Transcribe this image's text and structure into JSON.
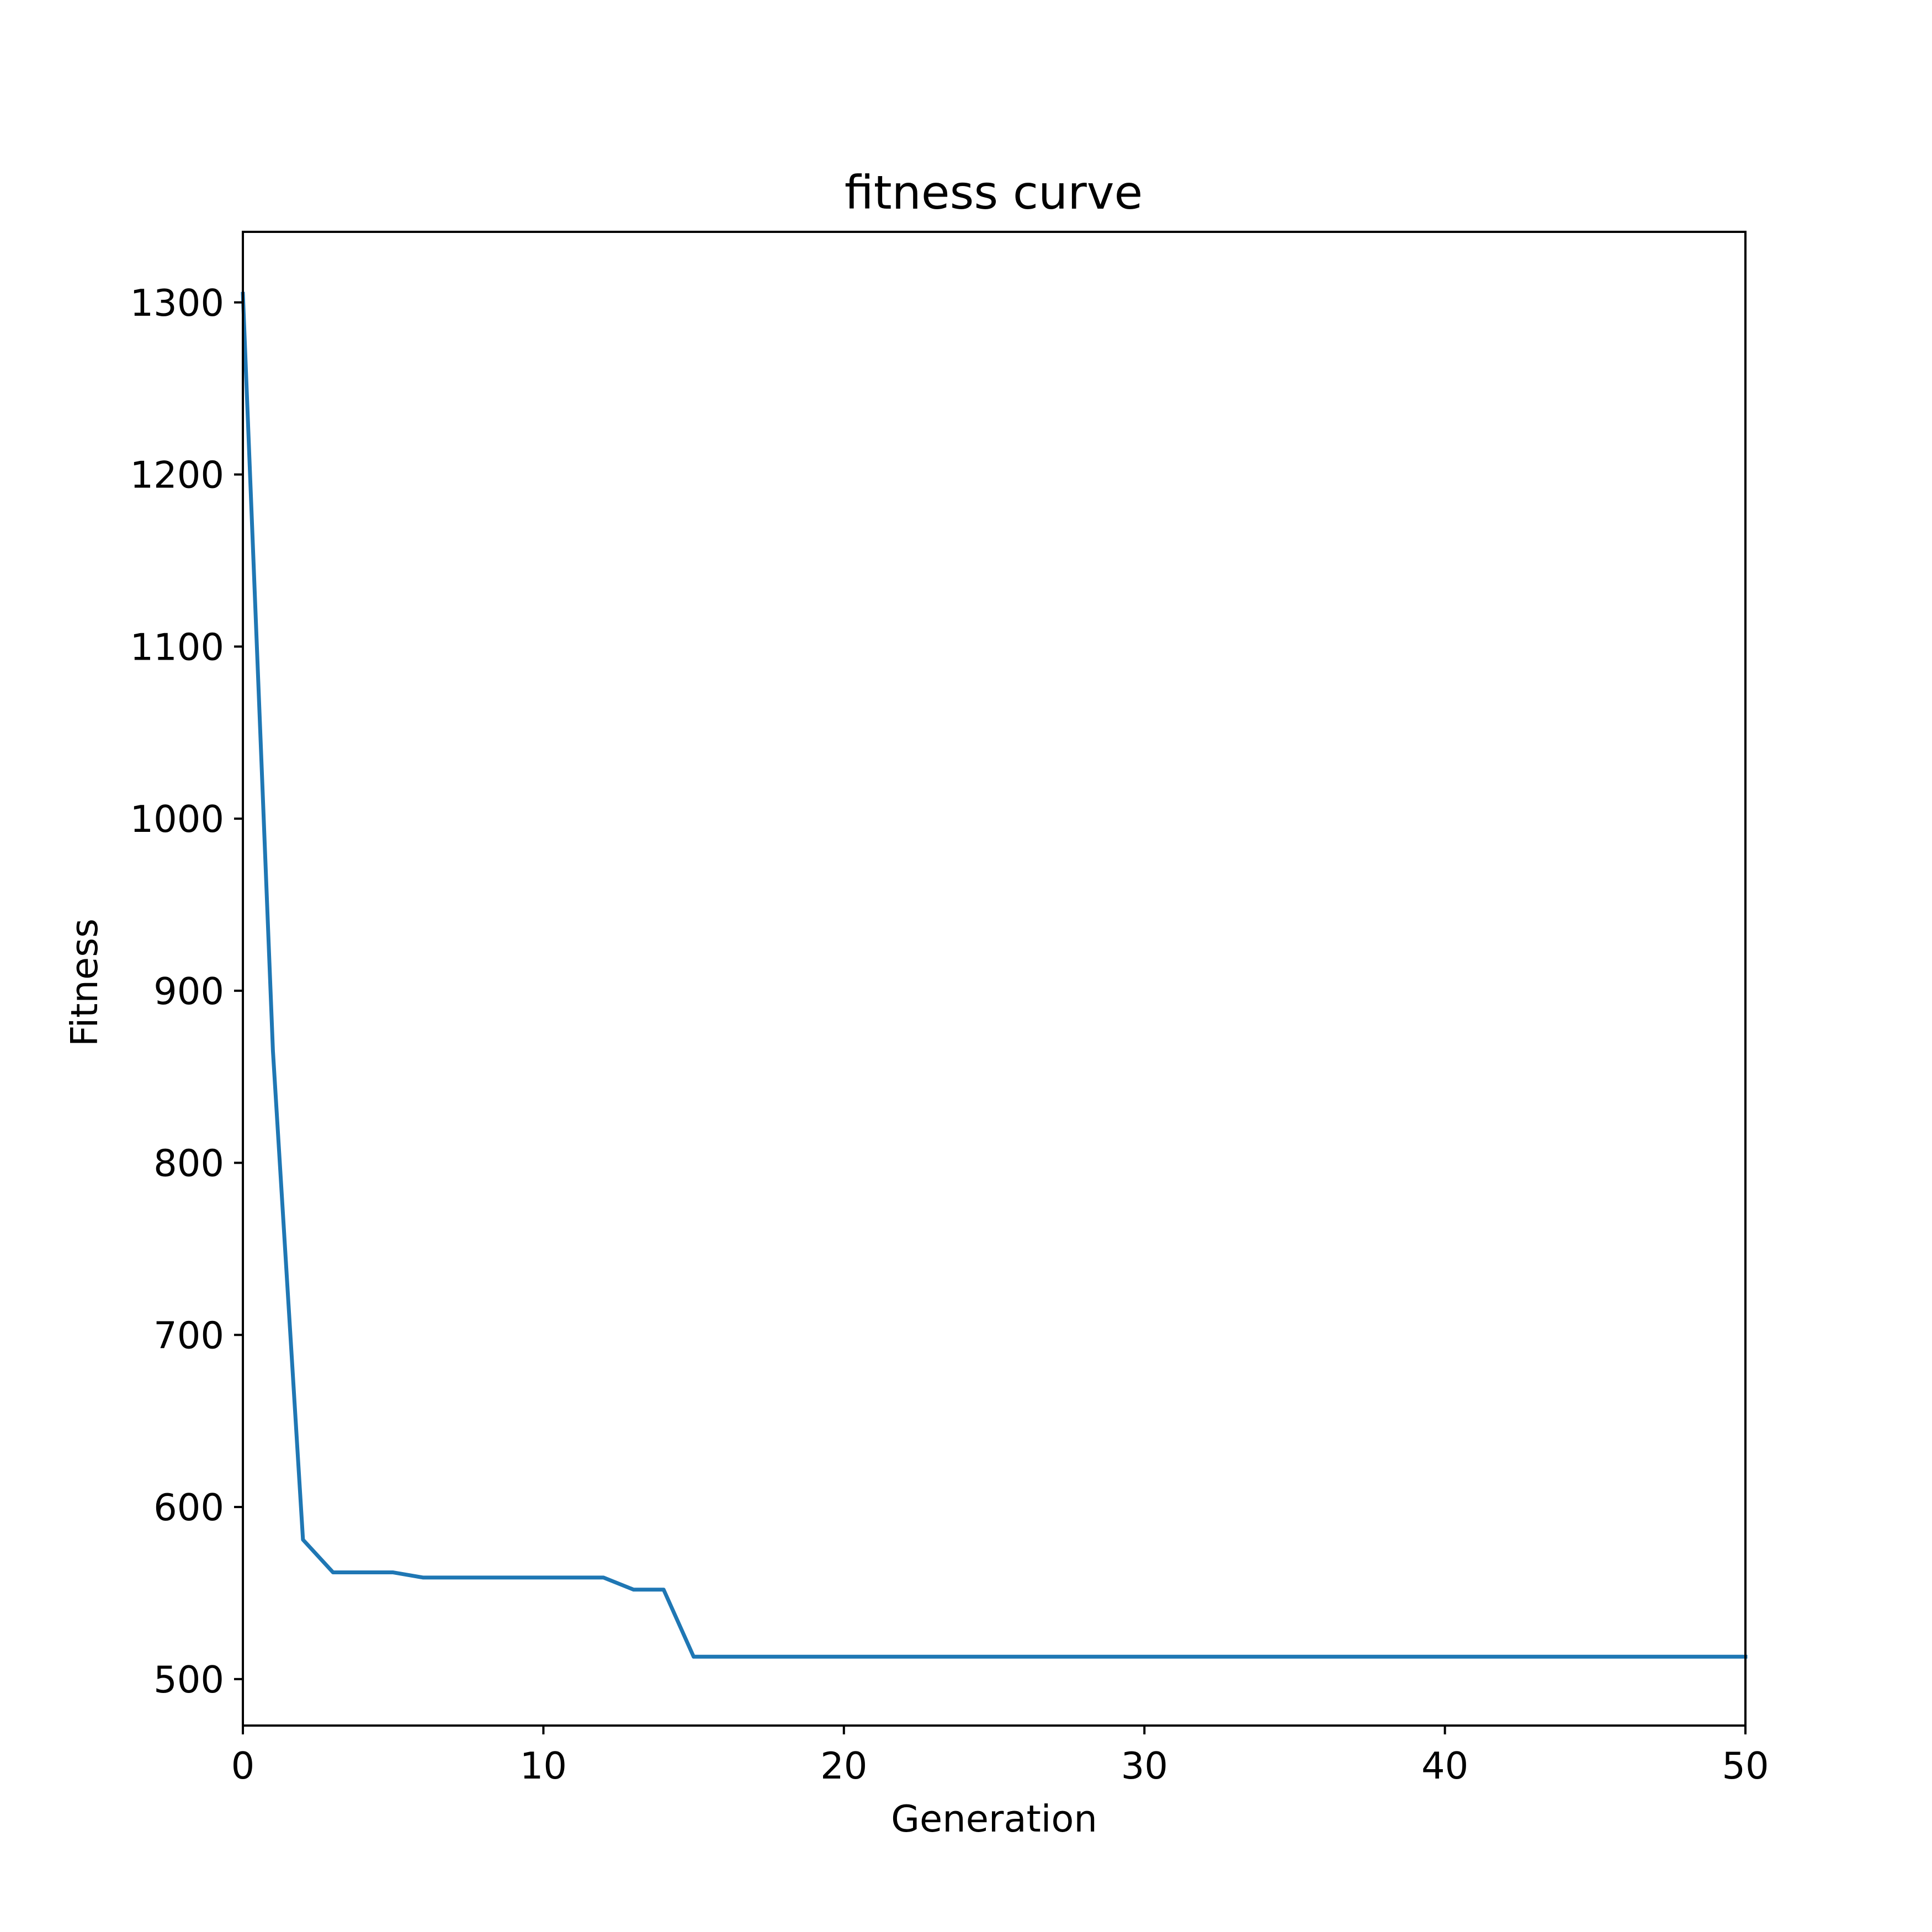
{
  "chart_data": {
    "type": "line",
    "title": "fitness curve",
    "xlabel": "Generation",
    "ylabel": "Fitness",
    "xlim": [
      0,
      50
    ],
    "ylim": [
      473,
      1341
    ],
    "xticks": [
      0,
      10,
      20,
      30,
      40,
      50
    ],
    "yticks": [
      500,
      600,
      700,
      800,
      900,
      1000,
      1100,
      1200,
      1300
    ],
    "grid": false,
    "series": [
      {
        "color": "#1f77b4",
        "x": [
          0,
          1,
          2,
          3,
          4,
          5,
          6,
          7,
          8,
          9,
          10,
          11,
          12,
          13,
          14,
          15,
          16,
          17,
          18,
          19,
          20,
          21,
          22,
          23,
          24,
          25,
          26,
          27,
          28,
          29,
          30,
          31,
          32,
          33,
          34,
          35,
          36,
          37,
          38,
          39,
          40,
          41,
          42,
          43,
          44,
          45,
          46,
          47,
          48,
          49,
          50
        ],
        "y": [
          1305,
          865,
          581,
          562,
          562,
          562,
          559,
          559,
          559,
          559,
          559,
          559,
          559,
          552,
          552,
          513,
          513,
          513,
          513,
          513,
          513,
          513,
          513,
          513,
          513,
          513,
          513,
          513,
          513,
          513,
          513,
          513,
          513,
          513,
          513,
          513,
          513,
          513,
          513,
          513,
          513,
          513,
          513,
          513,
          513,
          513,
          513,
          513,
          513,
          513,
          513
        ]
      }
    ]
  }
}
